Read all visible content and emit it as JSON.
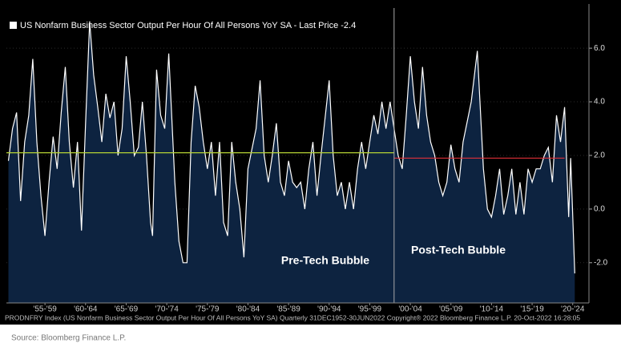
{
  "chart_data": {
    "type": "area",
    "title": "US Nonfarm Business Sector Output Per Hour Of All Persons YoY SA - Last Price -2.4",
    "footer": "PRODNFRY Index (US Nonfarm Business Sector Output Per Hour Of All Persons YoY SA)  Quarterly 31DEC1952-30JUN2022 Copyright® 2022 Bloomberg Finance L.P.  20-Oct-2022 16:28:05",
    "source": "Source: Bloomberg Finance L.P.",
    "annotations": [
      "Pre-Tech Bubble",
      "Post-Tech Bubble"
    ],
    "x": [
      1953.0,
      1953.5,
      1954.0,
      1954.5,
      1955.0,
      1955.5,
      1956.0,
      1956.5,
      1957.0,
      1957.5,
      1958.0,
      1958.5,
      1959.0,
      1959.5,
      1960.0,
      1960.5,
      1961.0,
      1961.5,
      1962.0,
      1962.5,
      1963.0,
      1963.5,
      1964.0,
      1964.5,
      1965.0,
      1965.5,
      1966.0,
      1966.5,
      1967.0,
      1967.5,
      1968.0,
      1968.5,
      1969.0,
      1969.5,
      1970.0,
      1970.5,
      1970.75,
      1971.25,
      1971.75,
      1972.25,
      1972.75,
      1973.5,
      1974.0,
      1974.5,
      1975.0,
      1975.5,
      1976.0,
      1976.5,
      1977.0,
      1977.5,
      1978.0,
      1978.5,
      1979.0,
      1979.5,
      1980.0,
      1980.5,
      1981.0,
      1981.5,
      1982.0,
      1982.5,
      1983.5,
      1984.0,
      1984.5,
      1985.0,
      1985.5,
      1986.0,
      1986.5,
      1987.0,
      1987.5,
      1988.0,
      1988.5,
      1989.0,
      1989.5,
      1990.0,
      1990.5,
      1991.0,
      1991.5,
      1992.5,
      1993.0,
      1993.5,
      1994.0,
      1994.5,
      1995.0,
      1995.5,
      1996.0,
      1996.5,
      1997.0,
      1997.5,
      1998.0,
      1998.5,
      1999.0,
      1999.5,
      2000.0,
      2000.5,
      2001.0,
      2001.5,
      2002.0,
      2002.5,
      2003.0,
      2003.5,
      2004.0,
      2004.5,
      2005.0,
      2005.5,
      2006.0,
      2006.5,
      2007.0,
      2007.5,
      2008.0,
      2008.5,
      2009.0,
      2010.0,
      2010.75,
      2011.5,
      2012.0,
      2012.5,
      2013.0,
      2013.5,
      2014.0,
      2014.5,
      2015.0,
      2015.5,
      2016.0,
      2016.5,
      2017.0,
      2017.5,
      2018.0,
      2018.5,
      2019.0,
      2019.5,
      2020.0,
      2020.5,
      2021.0,
      2021.5,
      2022.0,
      2022.25,
      2022.75
    ],
    "series": [
      {
        "name": "US Nonfarm Business Sector Output Per Hour Of All Persons YoY SA",
        "color": "#ffffff",
        "fill": "#0d2340",
        "values": [
          1.8,
          3.0,
          3.6,
          0.3,
          2.5,
          3.5,
          5.6,
          2.5,
          0.5,
          -1.0,
          1.0,
          2.7,
          1.5,
          3.6,
          5.3,
          2.5,
          0.8,
          2.5,
          -0.8,
          3.2,
          7.0,
          5.0,
          3.8,
          2.5,
          4.3,
          3.4,
          4.0,
          2.0,
          3.0,
          5.7,
          4.0,
          2.0,
          2.3,
          4.0,
          2.0,
          -0.5,
          -1.0,
          5.2,
          3.5,
          3.0,
          5.8,
          1.0,
          -1.2,
          -2.0,
          -2.0,
          2.5,
          4.6,
          3.8,
          2.5,
          1.5,
          2.5,
          0.5,
          2.5,
          -0.5,
          -1.0,
          2.5,
          1.0,
          0.0,
          -1.8,
          1.5,
          3.0,
          4.8,
          2.0,
          1.0,
          2.0,
          3.2,
          1.0,
          0.5,
          1.8,
          1.0,
          0.8,
          1.0,
          0.0,
          1.5,
          2.5,
          0.5,
          2.0,
          4.8,
          2.0,
          0.5,
          1.0,
          0.0,
          1.0,
          0.0,
          1.5,
          2.5,
          1.5,
          2.5,
          3.5,
          2.8,
          4.0,
          3.0,
          4.0,
          3.0,
          2.0,
          1.5,
          3.5,
          5.7,
          4.0,
          3.0,
          5.3,
          3.5,
          2.5,
          2.0,
          1.0,
          0.5,
          1.0,
          2.4,
          1.5,
          1.0,
          2.5,
          4.0,
          5.9,
          1.5,
          0.0,
          -0.3,
          0.5,
          1.5,
          -0.2,
          0.5,
          1.5,
          -0.2,
          1.0,
          -0.2,
          1.5,
          1.0,
          1.5,
          1.5,
          2.0,
          2.3,
          1.0,
          3.5,
          2.5,
          3.8,
          -0.3,
          1.9,
          -2.4
        ]
      }
    ],
    "reference_lines": [
      {
        "value": 2.1,
        "color": "#b5d334",
        "from": 1952.75,
        "to": 2000.5
      },
      {
        "value": 1.9,
        "color": "#e0303a",
        "from": 2000.5,
        "to": 2021.5
      }
    ],
    "divider": 2000.5,
    "xlim": [
      1952.75,
      2024.5
    ],
    "ylim": [
      -3.5,
      6.9
    ],
    "yticks": [
      {
        "value": -2,
        "label": "-2.0"
      },
      {
        "value": 0,
        "label": "0.0"
      },
      {
        "value": 2,
        "label": "2.0"
      },
      {
        "value": 4,
        "label": "4.0"
      },
      {
        "value": 6,
        "label": "6.0"
      }
    ],
    "xticks": [
      {
        "value": 1957.5,
        "label": "'55-'59"
      },
      {
        "value": 1962.5,
        "label": "'60-'64"
      },
      {
        "value": 1967.5,
        "label": "'65-'69"
      },
      {
        "value": 1972.5,
        "label": "'70-'74"
      },
      {
        "value": 1977.5,
        "label": "'75-'79"
      },
      {
        "value": 1982.5,
        "label": "'80-'84"
      },
      {
        "value": 1987.5,
        "label": "'85-'89"
      },
      {
        "value": 1992.5,
        "label": "'90-'94"
      },
      {
        "value": 1997.5,
        "label": "'95-'99"
      },
      {
        "value": 2002.5,
        "label": "'00-'04"
      },
      {
        "value": 2007.5,
        "label": "'05-'09"
      },
      {
        "value": 2012.5,
        "label": "'10-'14"
      },
      {
        "value": 2017.5,
        "label": "'15-'19"
      },
      {
        "value": 2022.5,
        "label": "'20-'24"
      }
    ]
  }
}
